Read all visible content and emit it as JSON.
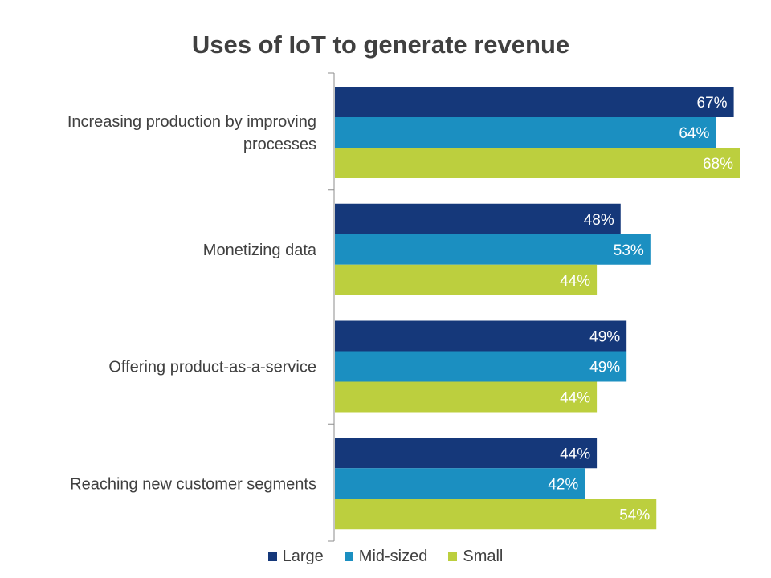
{
  "chart_data": {
    "type": "bar",
    "orientation": "horizontal",
    "title": "Uses of IoT to generate revenue",
    "categories": [
      "Increasing production by improving processes",
      "Monetizing data",
      "Offering product-as-a-service",
      "Reaching new customer segments"
    ],
    "category_lines": [
      [
        "Increasing production by improving",
        "processes"
      ],
      [
        "Monetizing data"
      ],
      [
        "Offering product-as-a-service"
      ],
      [
        "Reaching new customer segments"
      ]
    ],
    "series": [
      {
        "name": "Large",
        "color": "#15387a",
        "values": [
          67,
          48,
          49,
          44
        ]
      },
      {
        "name": "Mid-sized",
        "color": "#1b8fc1",
        "values": [
          64,
          53,
          49,
          42
        ]
      },
      {
        "name": "Small",
        "color": "#bccf3e",
        "values": [
          68,
          44,
          44,
          54
        ]
      }
    ],
    "value_suffix": "%",
    "xlim": [
      0,
      68
    ],
    "grid": false,
    "legend_position": "bottom"
  }
}
